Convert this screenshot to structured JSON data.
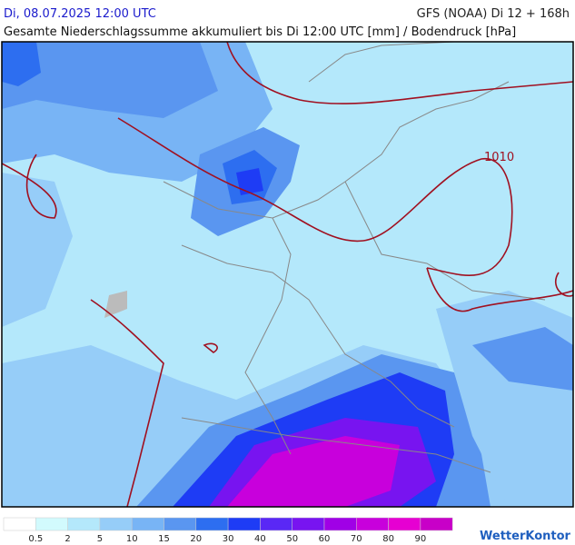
{
  "header": {
    "datetime": "Di, 08.07.2025 12:00 UTC",
    "model": "GFS (NOAA) Di 12 + 168h",
    "subtitle": "Gesamte Niederschlagssumme akkumuliert bis Di 12:00 UTC [mm] / Bodendruck [hPa]"
  },
  "map": {
    "isobar_label": "1010"
  },
  "legend": {
    "colors": [
      "#ffffff",
      "#d2fafd",
      "#b4e8fb",
      "#96cdf8",
      "#78b4f5",
      "#5a96f0",
      "#2d6ef0",
      "#1e3cf5",
      "#5a28f5",
      "#7814f0",
      "#a000e6",
      "#c800dc",
      "#e600d2",
      "#c800c8"
    ],
    "labels": [
      "0.5",
      "2",
      "5",
      "10",
      "15",
      "20",
      "30",
      "40",
      "50",
      "60",
      "70",
      "80",
      "90"
    ]
  },
  "brand": "WetterKontor"
}
